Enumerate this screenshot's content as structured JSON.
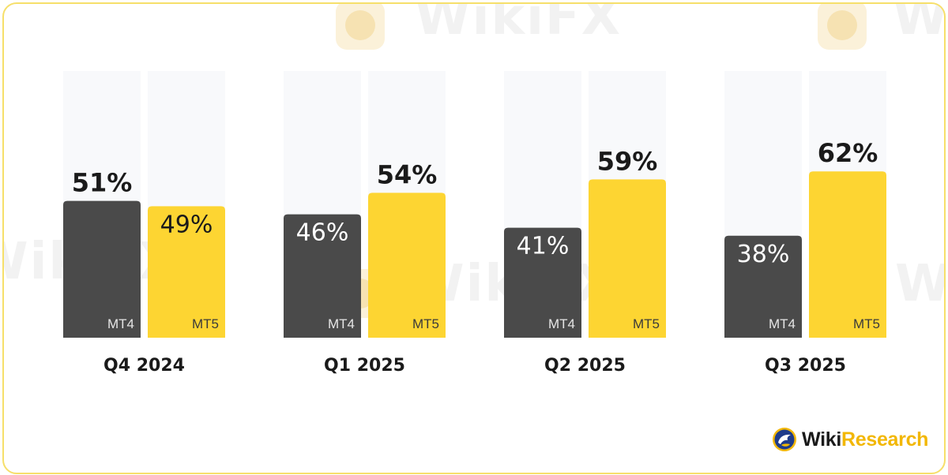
{
  "chart_data": {
    "type": "bar",
    "categories": [
      "Q4 2024",
      "Q1 2025",
      "Q2 2025",
      "Q3 2025"
    ],
    "series": [
      {
        "name": "MT4",
        "values": [
          51,
          46,
          41,
          38
        ],
        "value_labels": [
          "51%",
          "46%",
          "41%",
          "38%"
        ]
      },
      {
        "name": "MT5",
        "values": [
          49,
          54,
          59,
          62
        ],
        "value_labels": [
          "49%",
          "54%",
          "59%",
          "62%"
        ]
      }
    ],
    "ylim": [
      0,
      100
    ],
    "value_unit": "%",
    "grid": false,
    "legend": "none",
    "colors": {
      "MT4": "#4a4a4a",
      "MT5": "#fdd532",
      "track": "#f8f9fb",
      "text_dark": "#1a1a1a",
      "text_light": "#ffffff"
    }
  },
  "watermark": {
    "text": "WikiFX"
  },
  "brand": {
    "name_part1": "Wiki",
    "name_part2": "Research",
    "logo_icon": "eagle-globe-icon"
  }
}
